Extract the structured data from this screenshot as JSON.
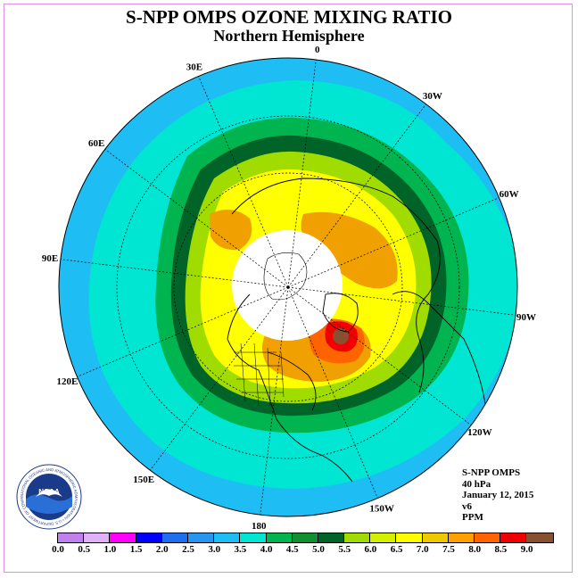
{
  "title": "S-NPP OMPS OZONE MIXING RATIO",
  "subtitle": "Northern Hemisphere",
  "info": {
    "instrument": "S-NPP OMPS",
    "pressure": "40 hPa",
    "date": "January 12, 2015",
    "version": "v6",
    "units": "PPM"
  },
  "logo": {
    "text": "NOAA",
    "ring_text": "NATIONAL OCEANIC AND ATMOSPHERIC ADMINISTRATION • U.S. DEPARTMENT OF COMMERCE"
  },
  "longitude_labels": [
    "90E",
    "60E",
    "30E",
    "0",
    "30W",
    "60W",
    "90W",
    "120W",
    "150W",
    "180",
    "150E",
    "120E"
  ],
  "colorbar": {
    "colors": [
      "#c080f0",
      "#e0b0f8",
      "#ff00ff",
      "#0000ff",
      "#1e6ef0",
      "#2896f0",
      "#1ebef5",
      "#00e6d2",
      "#00b450",
      "#109030",
      "#006428",
      "#a0dc00",
      "#d2f000",
      "#ffff00",
      "#f0c800",
      "#ffa000",
      "#ff6400",
      "#f00000",
      "#885030"
    ],
    "ticks": [
      "0.0",
      "0.5",
      "1.0",
      "1.5",
      "2.0",
      "2.5",
      "3.0",
      "3.5",
      "4.0",
      "4.5",
      "5.0",
      "5.5",
      "6.0",
      "6.5",
      "7.0",
      "7.5",
      "8.0",
      "8.5",
      "9.0"
    ]
  },
  "legend": {
    "colors": {
      "cyan": "#1ebef5",
      "aqua": "#00e6d2",
      "green": "#00b450",
      "dark_green": "#006428",
      "yellow_green": "#a0dc00",
      "yellow": "#ffff00",
      "orange": "#f0a000",
      "red_orange": "#ff6400",
      "red": "#f00000",
      "brown": "#885030",
      "no_data": "#ffffff"
    }
  }
}
